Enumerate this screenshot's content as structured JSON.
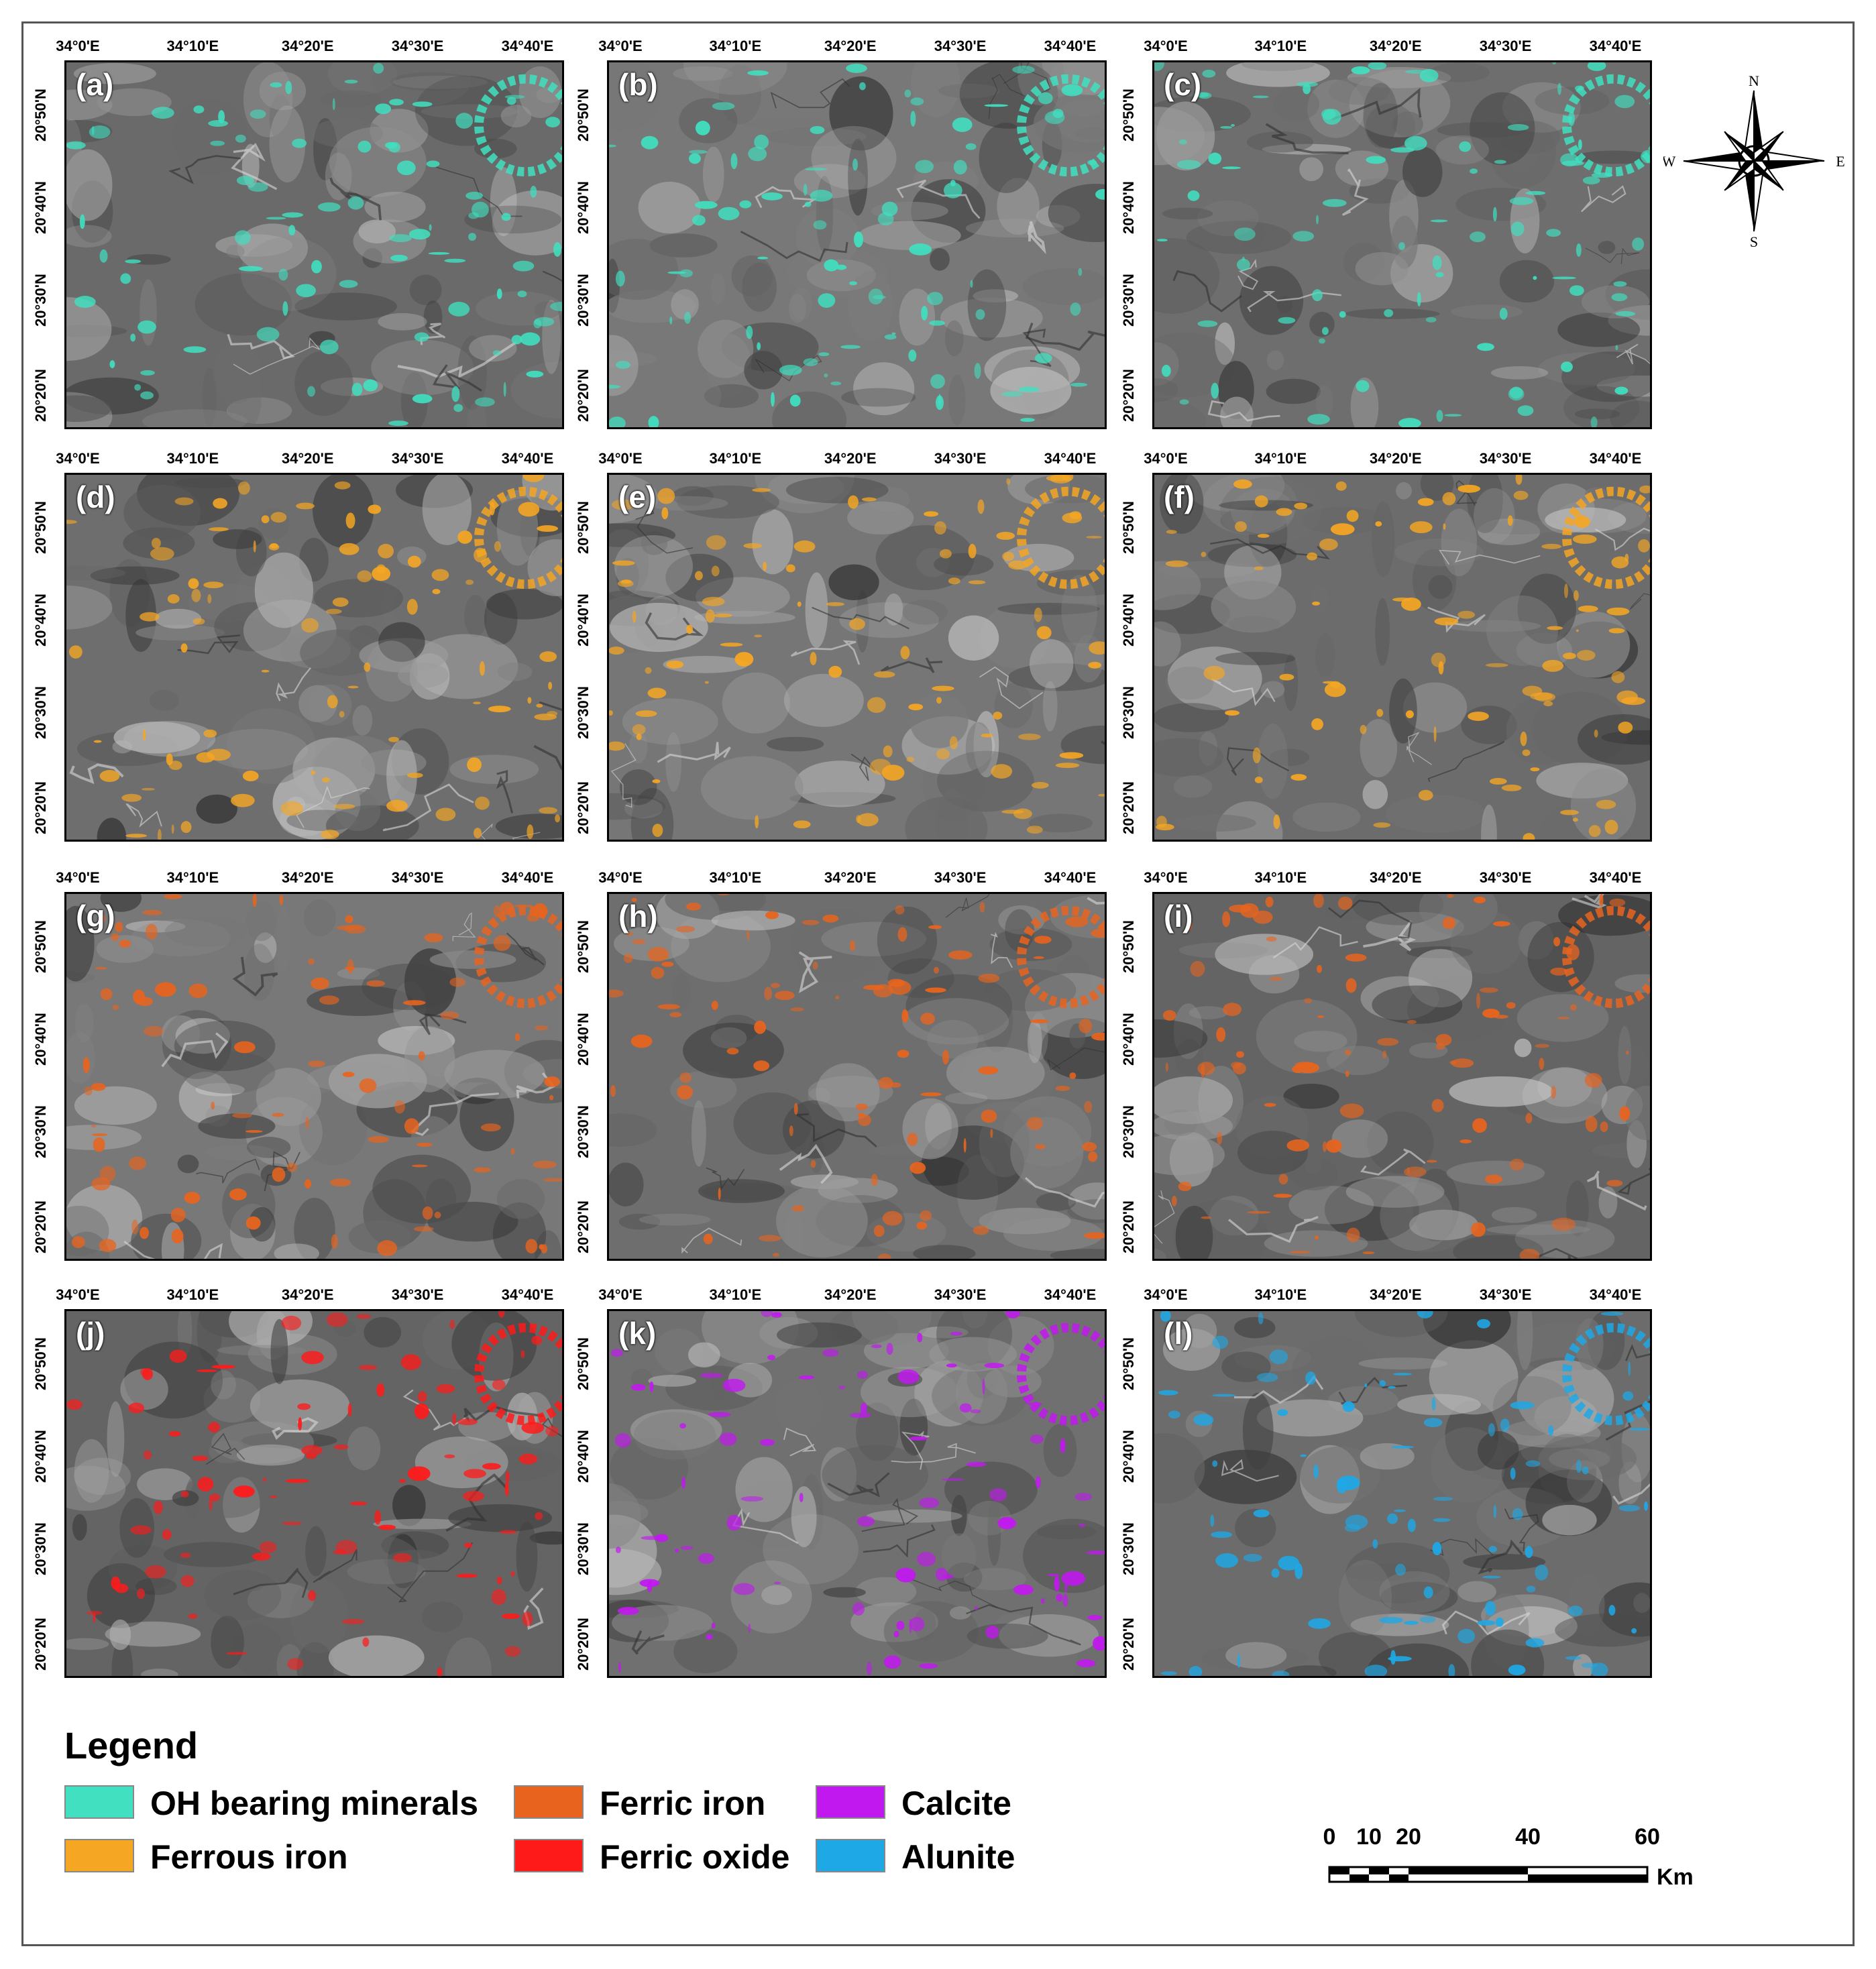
{
  "figure": {
    "x_ticks": [
      "34°0'E",
      "34°10'E",
      "34°20'E",
      "34°30'E",
      "34°40'E"
    ],
    "y_ticks": [
      "20°50'N",
      "20°40'N",
      "20°30'N",
      "20°20'N"
    ],
    "panels": [
      {
        "label": "(a)",
        "mineral": "OH bearing minerals",
        "color": "#40e0c0"
      },
      {
        "label": "(b)",
        "mineral": "OH bearing minerals",
        "color": "#40e0c0"
      },
      {
        "label": "(c)",
        "mineral": "OH bearing minerals",
        "color": "#40e0c0"
      },
      {
        "label": "(d)",
        "mineral": "Ferrous iron",
        "color": "#f5a623"
      },
      {
        "label": "(e)",
        "mineral": "Ferrous iron",
        "color": "#f5a623"
      },
      {
        "label": "(f)",
        "mineral": "Ferrous iron",
        "color": "#f5a623"
      },
      {
        "label": "(g)",
        "mineral": "Ferric iron",
        "color": "#e8641e"
      },
      {
        "label": "(h)",
        "mineral": "Ferric iron",
        "color": "#e8641e"
      },
      {
        "label": "(i)",
        "mineral": "Ferric iron",
        "color": "#e8641e"
      },
      {
        "label": "(j)",
        "mineral": "Ferric oxide",
        "color": "#ff1a1a"
      },
      {
        "label": "(k)",
        "mineral": "Calcite",
        "color": "#c218f0"
      },
      {
        "label": "(l)",
        "mineral": "Alunite",
        "color": "#1ea8e6"
      }
    ]
  },
  "compass": {
    "n": "N",
    "s": "S",
    "e": "E",
    "w": "W"
  },
  "legend": {
    "title": "Legend",
    "items": [
      {
        "label": "OH bearing minerals",
        "color": "#40e0c0"
      },
      {
        "label": "Ferric iron",
        "color": "#e8641e"
      },
      {
        "label": "Calcite",
        "color": "#c218f0"
      },
      {
        "label": "Ferrous iron",
        "color": "#f5a623"
      },
      {
        "label": "Ferric oxide",
        "color": "#ff1a1a"
      },
      {
        "label": "Alunite",
        "color": "#1ea8e6"
      }
    ]
  },
  "scalebar": {
    "ticks": [
      "0",
      "10",
      "20",
      "40",
      "60"
    ],
    "unit": "Km"
  }
}
